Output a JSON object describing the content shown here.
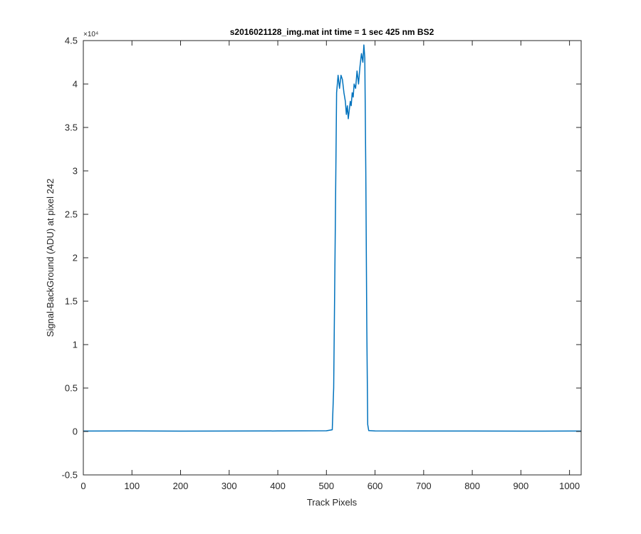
{
  "window": {
    "title": "s2016021128_img.mat int time = 1 sec  425 nm BS2"
  },
  "chart_data": {
    "type": "line",
    "title": "s2016021128_img.mat int time = 1 sec  425 nm BS2",
    "xlabel": "Track Pixels",
    "ylabel": "Signal-BackGround (ADU) at pixel 242",
    "xlim": [
      0,
      1024
    ],
    "ylim": [
      -5000,
      45000
    ],
    "x_ticks": [
      0,
      100,
      200,
      300,
      400,
      500,
      600,
      700,
      800,
      900,
      1000
    ],
    "y_ticks": [
      -5000,
      0,
      5000,
      10000,
      15000,
      20000,
      25000,
      30000,
      35000,
      40000,
      45000
    ],
    "y_tick_labels": [
      "-0.5",
      "0",
      "0.5",
      "1",
      "1.5",
      "2",
      "2.5",
      "3",
      "3.5",
      "4",
      "4.5"
    ],
    "y_exponent_label": "×10⁴",
    "grid": false,
    "line_color": "#0072BD",
    "series": [
      {
        "name": "",
        "x": [
          0,
          100,
          200,
          300,
          400,
          500,
          512,
          515,
          518,
          521,
          524,
          527,
          530,
          533,
          536,
          539,
          541,
          543,
          545,
          547,
          549,
          551,
          553,
          555,
          557,
          560,
          563,
          566,
          569,
          572,
          575,
          577,
          579,
          581,
          583,
          585,
          587,
          600,
          700,
          800,
          900,
          1000,
          1024
        ],
        "y": [
          50,
          60,
          40,
          50,
          60,
          80,
          200,
          5000,
          22000,
          39000,
          41000,
          39500,
          41000,
          40500,
          39000,
          38000,
          36500,
          37500,
          36000,
          37000,
          38000,
          37500,
          39000,
          38500,
          40000,
          39500,
          41500,
          40000,
          42000,
          43500,
          42500,
          44500,
          43000,
          30000,
          12000,
          800,
          100,
          60,
          50,
          50,
          40,
          50,
          50
        ]
      }
    ]
  }
}
